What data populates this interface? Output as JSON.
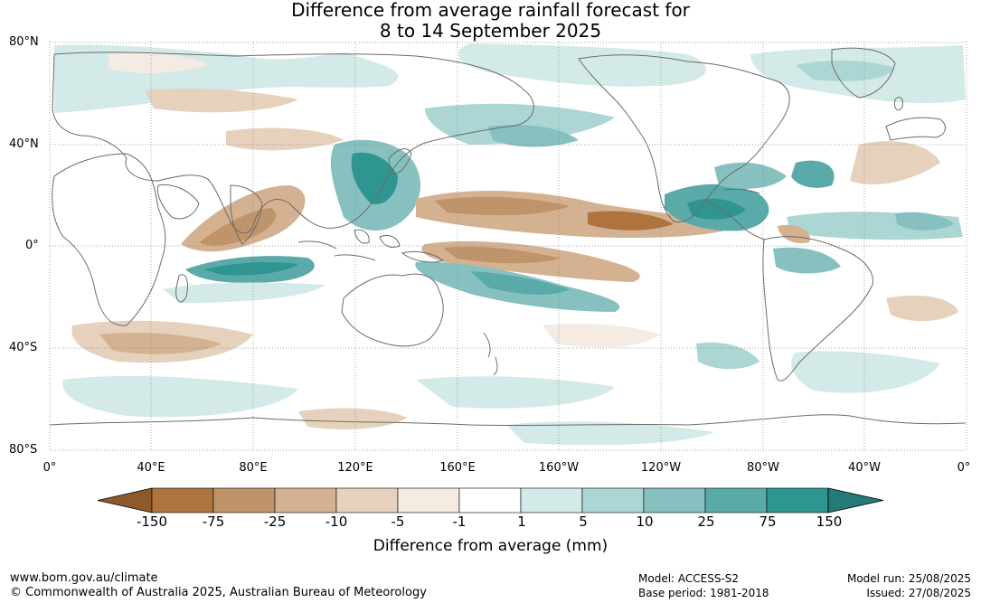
{
  "title": {
    "line1": "Difference from average rainfall forecast for",
    "line2": "8 to 14 September 2025"
  },
  "map": {
    "lat_labels": [
      "80°N",
      "40°N",
      "0°",
      "40°S",
      "80°S"
    ],
    "lon_labels": [
      "0°",
      "40°E",
      "80°E",
      "120°E",
      "160°E",
      "160°W",
      "120°W",
      "80°W",
      "40°W",
      "0°"
    ],
    "gridlines": true,
    "coastline_color": "#6b6b6b"
  },
  "colorbar": {
    "title": "Difference from average (mm)",
    "tick_labels": [
      "-150",
      "-75",
      "-25",
      "-10",
      "-5",
      "-1",
      "1",
      "5",
      "10",
      "25",
      "75",
      "150"
    ],
    "colors": [
      "#8c5a2c",
      "#ad7440",
      "#c0946b",
      "#d4b291",
      "#e6d1bd",
      "#f4ebe3",
      "#ffffff",
      "#d3eae8",
      "#acd6d4",
      "#86c1c0",
      "#5aaaa9",
      "#2e9591",
      "#237a77"
    ]
  },
  "footer": {
    "website": "www.bom.gov.au/climate",
    "copyright": "© Commonwealth of Australia 2025, Australian Bureau of Meteorology",
    "model": "Model: ACCESS-S2",
    "base_period": "Base period: 1981-2018",
    "model_run": "Model run: 25/08/2025",
    "issued": "Issued: 27/08/2025"
  }
}
